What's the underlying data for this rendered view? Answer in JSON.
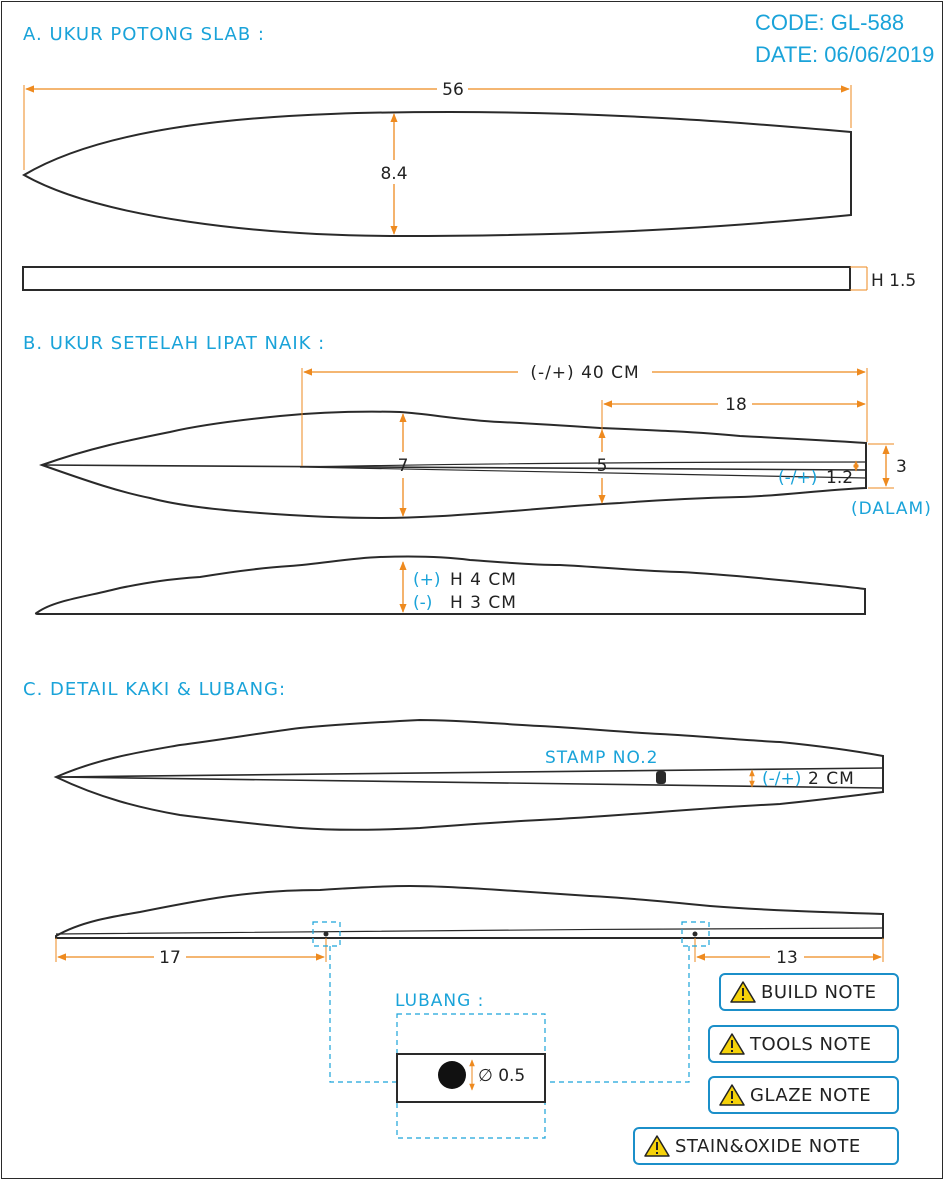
{
  "header": {
    "code": "CODE: GL-588",
    "date": "DATE: 06/06/2019"
  },
  "section_a": {
    "title": "A. UKUR POTONG SLAB :",
    "length": "56",
    "width": "8.4",
    "height": "H 1.5"
  },
  "section_b": {
    "title": "B. UKUR SETELAH LIPAT NAIK :",
    "overall": "(-/+) 40 CM",
    "partial": "18",
    "width_a": "7",
    "width_b": "5",
    "gap_prefix": "(-/+)",
    "gap_value": "1.2",
    "depth": "3",
    "depth_note": "(DALAM)",
    "height_plus_prefix": "(+)",
    "height_plus": "H 4 CM",
    "height_minus_prefix": "(-)",
    "height_minus": "H 3 CM"
  },
  "section_c": {
    "title": "C. DETAIL KAKI & LUBANG:",
    "stamp": "STAMP NO.2",
    "tip_prefix": "(-/+)",
    "tip_value": "2 CM",
    "left_foot": "17",
    "right_foot": "13",
    "hole_title": "LUBANG :",
    "hole_size": "∅ 0.5"
  },
  "notes": [
    {
      "label": "BUILD NOTE",
      "icon": "warning-icon"
    },
    {
      "label": "TOOLS NOTE",
      "icon": "warning-icon"
    },
    {
      "label": "GLAZE NOTE",
      "icon": "warning-icon"
    },
    {
      "label": "STAIN&OXIDE NOTE",
      "icon": "warning-icon"
    }
  ],
  "colors": {
    "accent": "#1aa3d9",
    "dimension": "#ee8a1f",
    "outline": "#2a2a2a",
    "button_border": "#1b8fc9",
    "warning": "#f5d20a"
  }
}
